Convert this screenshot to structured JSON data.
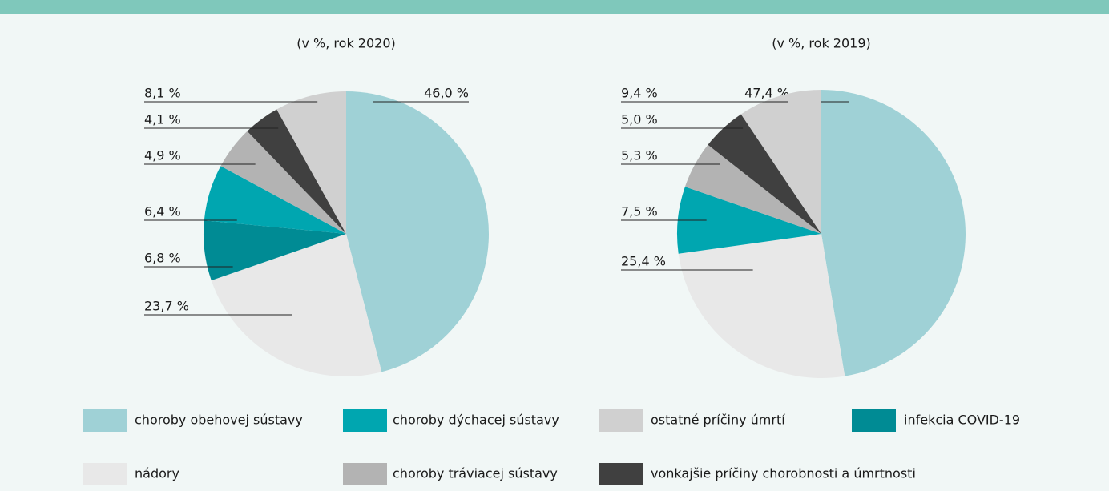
{
  "legend": [
    {
      "name": "choroby obehovej sústavy",
      "color": "#9fd1d6"
    },
    {
      "name": "choroby dýchacej sústavy",
      "color": "#00a6b0"
    },
    {
      "name": "ostatné príčiny úmrtí",
      "color": "#d0d0d0"
    },
    {
      "name": "infekcia COVID-19",
      "color": "#008b94"
    },
    {
      "name": "nádory",
      "color": "#e8e8e8"
    },
    {
      "name": "choroby tráviacej sústavy",
      "color": "#b3b3b3"
    },
    {
      "name": "vonkajšie príčiny chorobnosti a úmrtnosti",
      "color": "#404040"
    }
  ],
  "chart_data": [
    {
      "type": "pie",
      "subtitle": "(v %, rok 2020)",
      "categories": [
        "choroby obehovej sústavy",
        "nádory",
        "infekcia COVID-19",
        "choroby dýchacej sústavy",
        "choroby tráviacej sústavy",
        "vonkajšie príčiny chorobnosti a úmrtnosti",
        "ostatné príčiny úmrtí"
      ],
      "values": [
        46.0,
        23.7,
        6.8,
        6.4,
        4.9,
        4.1,
        8.1
      ],
      "value_labels": [
        "46,0 %",
        "23,7 %",
        "6,8 %",
        "6,4 %",
        "4,9 %",
        "4,1 %",
        "8,1 %"
      ]
    },
    {
      "type": "pie",
      "subtitle": "(v %, rok 2019)",
      "categories": [
        "choroby obehovej sústavy",
        "nádory",
        "choroby dýchacej sústavy",
        "choroby tráviacej sústavy",
        "vonkajšie príčiny chorobnosti a úmrtnosti",
        "ostatné príčiny úmrtí"
      ],
      "values": [
        47.4,
        25.4,
        7.5,
        5.3,
        5.0,
        9.4
      ],
      "value_labels": [
        "47,4 %",
        "25,4 %",
        "7,5 %",
        "5,3 %",
        "5,0 %",
        "9,4 %"
      ]
    }
  ]
}
